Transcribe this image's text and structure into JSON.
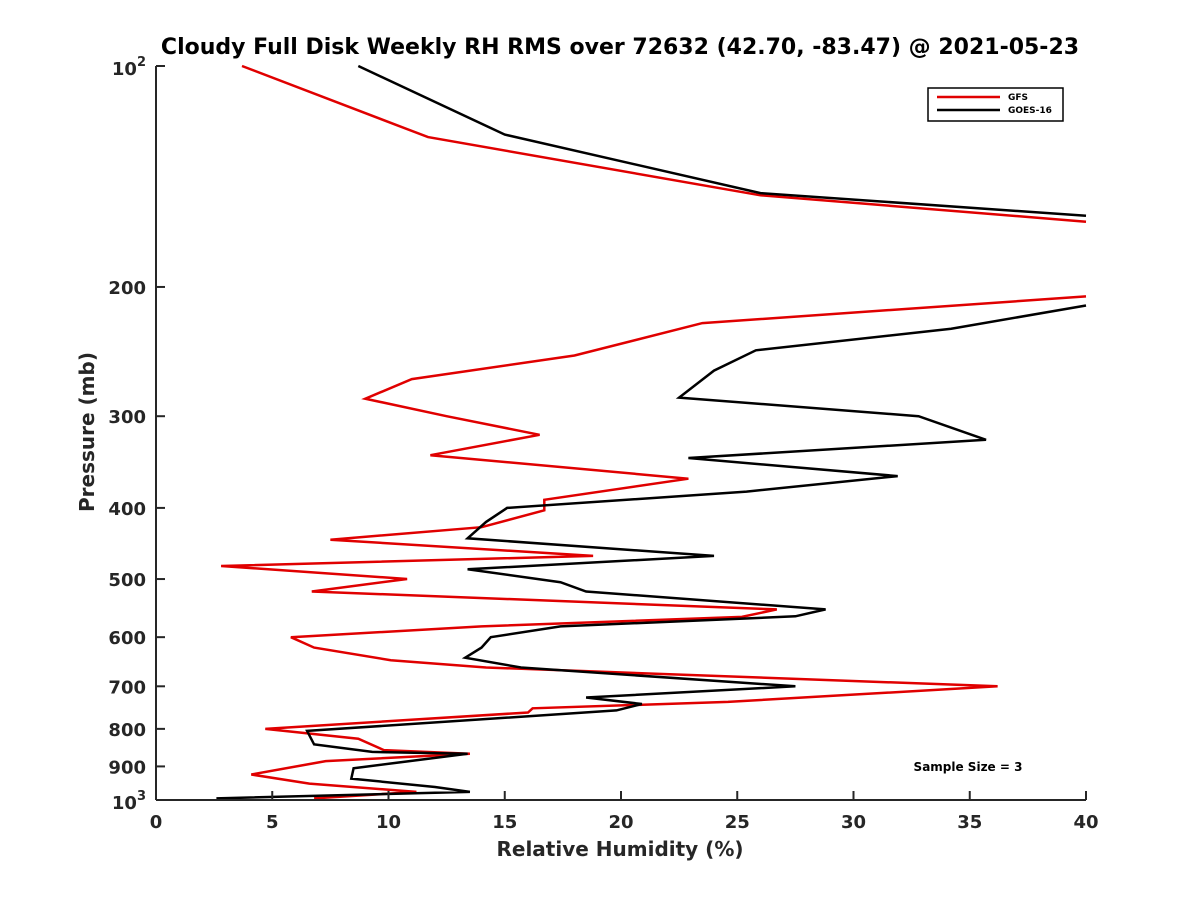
{
  "chart_data": {
    "type": "line",
    "orientation": "profile",
    "title": "Cloudy Full Disk Weekly RH RMS over 72632 (42.70, -83.47) @ 2021-05-23",
    "xlabel": "Relative Humidity (%)",
    "ylabel": "Pressure (mb)",
    "xlim": [
      0,
      40
    ],
    "ylim": [
      100,
      1000
    ],
    "yscale": "log",
    "y_reversed": true,
    "grid": false,
    "legend_position": "top-right",
    "x_ticks": [
      "0",
      "5",
      "10",
      "15",
      "20",
      "25",
      "30",
      "35",
      "40"
    ],
    "y_ticks": [
      {
        "value": 100,
        "base": "10",
        "exp": "2"
      },
      {
        "value": 200,
        "label": "200"
      },
      {
        "value": 300,
        "label": "300"
      },
      {
        "value": 400,
        "label": "400"
      },
      {
        "value": 500,
        "label": "500"
      },
      {
        "value": 600,
        "label": "600"
      },
      {
        "value": 700,
        "label": "700"
      },
      {
        "value": 800,
        "label": "800"
      },
      {
        "value": 900,
        "label": "900"
      },
      {
        "value": 1000,
        "base": "10",
        "exp": "3"
      }
    ],
    "annotation": "Sample Size = 3",
    "series": [
      {
        "name": "GFS",
        "color": "#e00000",
        "segments": [
          [
            [
              3.7,
              100
            ],
            [
              11.7,
              125
            ],
            [
              26,
              150
            ],
            [
              40,
              163
            ]
          ],
          [
            [
              40,
              206
            ],
            [
              23.5,
              224
            ],
            [
              18,
              248
            ],
            [
              11,
              267
            ],
            [
              9,
              284
            ],
            [
              12.5,
              300
            ],
            [
              16.5,
              318
            ],
            [
              11.8,
              339
            ],
            [
              22.9,
              365
            ],
            [
              16.7,
              390
            ],
            [
              16.7,
              403
            ],
            [
              14,
              425
            ],
            [
              7.5,
              442
            ],
            [
              18.8,
              465
            ],
            [
              2.8,
              480
            ],
            [
              10.8,
              500
            ],
            [
              6.7,
              520
            ],
            [
              26.7,
              550
            ],
            [
              25.2,
              563
            ],
            [
              14,
              580
            ],
            [
              5.8,
              600
            ],
            [
              6.8,
              620
            ],
            [
              10.1,
              645
            ],
            [
              14.2,
              660
            ],
            [
              36.2,
              700
            ],
            [
              29.5,
              720
            ],
            [
              24.6,
              735
            ],
            [
              16.2,
              750
            ],
            [
              16,
              760
            ],
            [
              4.7,
              800
            ],
            [
              8.7,
              825
            ],
            [
              9.8,
              855
            ],
            [
              13.5,
              865
            ],
            [
              7.3,
              885
            ],
            [
              4.1,
              923
            ],
            [
              6.6,
              950
            ],
            [
              11.2,
              975
            ],
            [
              6.8,
              995
            ]
          ]
        ]
      },
      {
        "name": "GOES-16",
        "color": "#000000",
        "segments": [
          [
            [
              8.7,
              100
            ],
            [
              15,
              124
            ],
            [
              26,
              149
            ],
            [
              40,
              160
            ]
          ],
          [
            [
              40,
              212
            ],
            [
              34.2,
              228
            ],
            [
              25.8,
              244
            ],
            [
              24,
              260
            ],
            [
              22.5,
              283
            ],
            [
              32.8,
              300
            ],
            [
              35.7,
              323
            ],
            [
              22.9,
              342
            ],
            [
              31.9,
              362
            ],
            [
              25.4,
              380
            ],
            [
              15.1,
              400
            ],
            [
              14.2,
              418
            ],
            [
              13.4,
              440
            ],
            [
              24,
              465
            ],
            [
              13.4,
              485
            ],
            [
              17.4,
              505
            ],
            [
              18.5,
              520
            ],
            [
              28.8,
              550
            ],
            [
              27.5,
              562
            ],
            [
              17.4,
              580
            ],
            [
              14.4,
              600
            ],
            [
              14,
              620
            ],
            [
              13.3,
              640
            ],
            [
              15.7,
              660
            ],
            [
              27.5,
              700
            ],
            [
              18.5,
              725
            ],
            [
              20.9,
              740
            ],
            [
              19.8,
              755
            ],
            [
              6.5,
              805
            ],
            [
              6.8,
              840
            ],
            [
              9.3,
              860
            ],
            [
              13.4,
              865
            ],
            [
              8.5,
              905
            ],
            [
              8.4,
              935
            ],
            [
              12,
              960
            ],
            [
              13.5,
              975
            ],
            [
              2.6,
              995
            ]
          ]
        ]
      }
    ]
  }
}
